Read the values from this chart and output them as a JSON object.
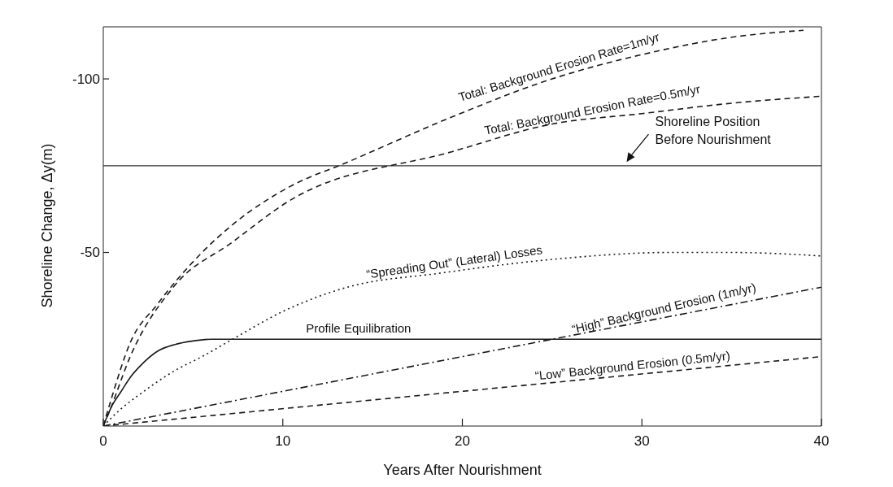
{
  "chart_data": {
    "type": "line",
    "xlabel": "Years After Nourishment",
    "ylabel": "Shoreline Change, Δy(m)",
    "xlim": [
      0,
      40
    ],
    "xticks": [
      0,
      10,
      20,
      30,
      40
    ],
    "ylim": [
      0,
      -115
    ],
    "yticks": [
      -100,
      -50
    ],
    "series": [
      {
        "name": "Total: Background Erosion Rate=1m/yr",
        "color": "#1a1a1a",
        "line_style": "dashed",
        "x": [
          0,
          0.4,
          1.5,
          3,
          5.5,
          7.2,
          10.4,
          13.6,
          19.4,
          25,
          30,
          35,
          39
        ],
        "values": [
          0,
          -7,
          -24,
          -35,
          -50,
          -58,
          -69,
          -76,
          -89,
          -100,
          -107,
          -112,
          -114
        ]
      },
      {
        "name": "Total: Background Erosion Rate=0.5m/yr",
        "color": "#1a1a1a",
        "line_style": "dashed",
        "x": [
          0,
          0.4,
          1.5,
          3.9,
          7.2,
          10.4,
          19.4,
          25,
          30,
          35,
          40
        ],
        "values": [
          0,
          -5,
          -20,
          -40,
          -53,
          -65,
          -79,
          -87,
          -90,
          -93,
          -95
        ]
      },
      {
        "name": "“Spreading Out” (Lateral) Losses",
        "color": "#1a1a1a",
        "line_style": "dotted",
        "x": [
          0,
          1,
          2,
          4,
          5.5,
          7.2,
          10,
          13.6,
          18.7,
          25,
          31.6,
          35,
          40
        ],
        "values": [
          0,
          -5,
          -9,
          -16,
          -20,
          -25,
          -33,
          -40,
          -44,
          -48,
          -50,
          -50,
          -49
        ]
      },
      {
        "name": "Profile Equilibration",
        "color": "#1a1a1a",
        "line_style": "solid",
        "x": [
          0,
          0.5,
          1,
          1.5,
          2,
          3,
          4,
          5,
          6,
          40
        ],
        "values": [
          0,
          -6,
          -10,
          -14,
          -17,
          -21.5,
          -23.5,
          -24.5,
          -25,
          -25
        ]
      },
      {
        "name": "“High” Background Erosion (1m/yr)",
        "color": "#1a1a1a",
        "line_style": "dashdot",
        "x": [
          0,
          40
        ],
        "values": [
          0,
          -40
        ]
      },
      {
        "name": "“Low” Background Erosion (0.5m/yr)",
        "color": "#1a1a1a",
        "line_style": "dashed",
        "x": [
          0,
          40
        ],
        "values": [
          0,
          -20
        ]
      }
    ],
    "ref_lines": [
      {
        "axis": "y",
        "value": -75,
        "label": "Shoreline Position\nBefore Nourishment",
        "color": "#333333"
      }
    ]
  }
}
